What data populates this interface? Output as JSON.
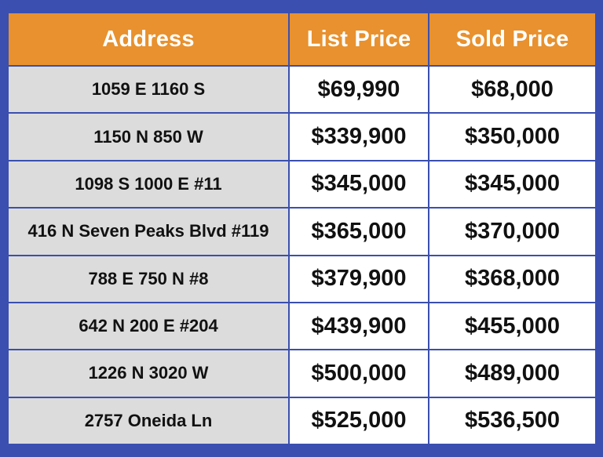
{
  "table": {
    "headers": [
      "Address",
      "List Price",
      "Sold Price"
    ],
    "rows": [
      [
        "1059 E 1160 S",
        "$69,990",
        "$68,000"
      ],
      [
        "1150 N 850 W",
        "$339,900",
        "$350,000"
      ],
      [
        "1098 S 1000 E #11",
        "$345,000",
        "$345,000"
      ],
      [
        "416 N Seven Peaks Blvd #119",
        "$365,000",
        "$370,000"
      ],
      [
        "788 E 750 N #8",
        "$379,900",
        "$368,000"
      ],
      [
        "642 N 200 E #204",
        "$439,900",
        "$455,000"
      ],
      [
        "1226 N 3020 W",
        "$500,000",
        "$489,000"
      ],
      [
        "2757 Oneida Ln",
        "$525,000",
        "$536,500"
      ]
    ]
  },
  "colors": {
    "border": "#3a4fb0",
    "header_bg": "#e8912e",
    "header_text": "#ffffff",
    "address_bg": "#dcdcdc",
    "price_bg": "#ffffff",
    "text": "#111111"
  }
}
